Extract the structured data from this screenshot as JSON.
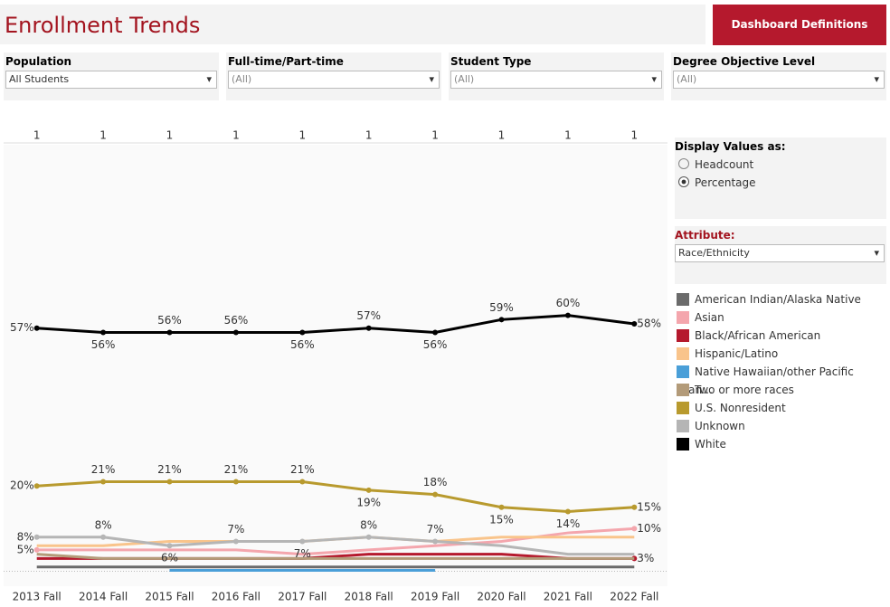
{
  "header": {
    "title": "Enrollment Trends",
    "button": "Dashboard Definitions"
  },
  "filters": [
    {
      "label": "Population",
      "value": "All Students"
    },
    {
      "label": "Full-time/Part-time",
      "value": "(All)"
    },
    {
      "label": "Student Type",
      "value": "(All)"
    },
    {
      "label": "Degree Objective Level",
      "value": "(All)"
    }
  ],
  "controls": {
    "display_label": "Display Values as:",
    "options": [
      "Headcount",
      "Percentage"
    ],
    "attribute_label": "Attribute:",
    "attribute_value": "Race/Ethnicity"
  },
  "chart_data": {
    "type": "line",
    "categories": [
      "2013 Fall",
      "2014 Fall",
      "2015 Fall",
      "2016 Fall",
      "2017 Fall",
      "2018 Fall",
      "2019 Fall",
      "2020 Fall",
      "2021 Fall",
      "2022 Fall"
    ],
    "column_counts": [
      1,
      1,
      1,
      1,
      1,
      1,
      1,
      1,
      1,
      1
    ],
    "ylim": [
      -3.5,
      100
    ],
    "series": [
      {
        "name": "American Indian/Alaska Native",
        "color": "#6b6b6b",
        "values": [
          1,
          1,
          1,
          1,
          1,
          1,
          1,
          1,
          1,
          1
        ]
      },
      {
        "name": "Asian",
        "color": "#f4a6ad",
        "values": [
          5,
          5,
          5,
          5,
          4,
          5,
          6,
          7,
          9,
          10
        ],
        "value_labels": [
          "5%",
          null,
          null,
          null,
          null,
          null,
          null,
          null,
          null,
          "10%"
        ]
      },
      {
        "name": "Black/African American",
        "color": "#b5192d",
        "values": [
          3,
          3,
          3,
          3,
          3,
          4,
          4,
          4,
          3,
          3
        ],
        "value_labels": [
          null,
          null,
          null,
          null,
          null,
          null,
          null,
          null,
          null,
          "3%"
        ]
      },
      {
        "name": "Hispanic/Latino",
        "color": "#f9c48b",
        "values": [
          6,
          6,
          7,
          7,
          7,
          8,
          7,
          8,
          8,
          8
        ]
      },
      {
        "name": "Native Hawaiian/other Pacific Islan…",
        "color": "#4a9fd8",
        "values": [
          null,
          null,
          0.2,
          0.2,
          0.2,
          0.2,
          0.2,
          null,
          null,
          null
        ]
      },
      {
        "name": "Two or more races",
        "color": "#b39b79",
        "values": [
          4,
          3,
          3,
          3,
          3,
          3,
          3,
          3,
          3,
          3
        ]
      },
      {
        "name": "U.S. Nonresident",
        "color": "#b89a2e",
        "values": [
          20,
          21,
          21,
          21,
          21,
          19,
          18,
          15,
          14,
          15
        ],
        "value_labels": [
          "20%",
          "21%",
          "21%",
          "21%",
          "21%",
          "19%",
          "18%",
          "15%",
          "14%",
          "15%"
        ]
      },
      {
        "name": "Unknown",
        "color": "#b5b5b5",
        "values": [
          8,
          8,
          6,
          7,
          7,
          8,
          7,
          6,
          4,
          4
        ],
        "value_labels": [
          "8%",
          "8%",
          "6%",
          "7%",
          "7%",
          "8%",
          "7%",
          null,
          null,
          null
        ]
      },
      {
        "name": "White",
        "color": "#000000",
        "values": [
          57,
          56,
          56,
          56,
          56,
          57,
          56,
          59,
          60,
          58
        ],
        "value_labels": [
          "57%",
          "56%",
          "56%",
          "56%",
          "56%",
          "57%",
          "56%",
          "59%",
          "60%",
          "58%"
        ]
      }
    ]
  }
}
